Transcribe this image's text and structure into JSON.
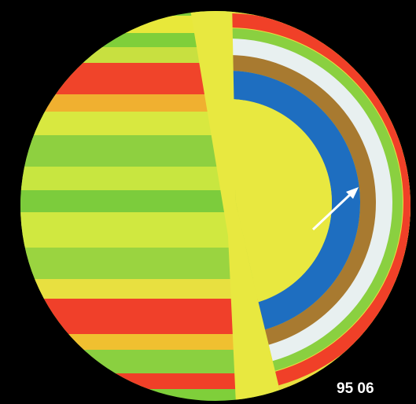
{
  "label": "95 06"
}
